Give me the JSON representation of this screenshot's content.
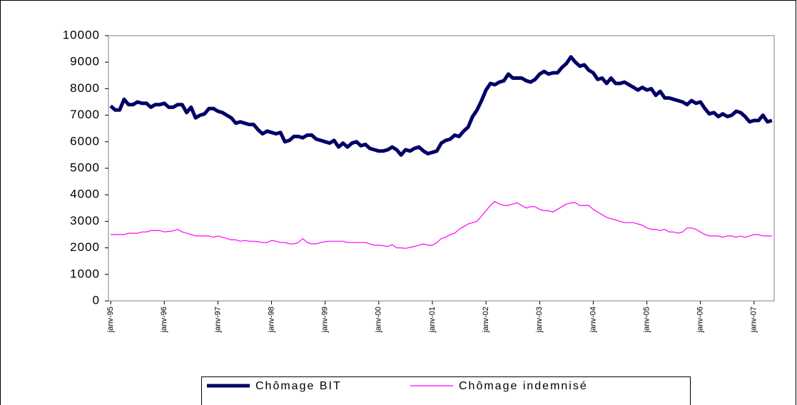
{
  "chart_data": {
    "type": "line",
    "categories": [
      "janv-95",
      null,
      null,
      null,
      null,
      null,
      null,
      null,
      null,
      null,
      null,
      null,
      "janv-96",
      null,
      null,
      null,
      null,
      null,
      null,
      null,
      null,
      null,
      null,
      null,
      "janv-97",
      null,
      null,
      null,
      null,
      null,
      null,
      null,
      null,
      null,
      null,
      null,
      "janv-98",
      null,
      null,
      null,
      null,
      null,
      null,
      null,
      null,
      null,
      null,
      null,
      "janv-99",
      null,
      null,
      null,
      null,
      null,
      null,
      null,
      null,
      null,
      null,
      null,
      "janv-00",
      null,
      null,
      null,
      null,
      null,
      null,
      null,
      null,
      null,
      null,
      null,
      "janv-01",
      null,
      null,
      null,
      null,
      null,
      null,
      null,
      null,
      null,
      null,
      null,
      "janv-02",
      null,
      null,
      null,
      null,
      null,
      null,
      null,
      null,
      null,
      null,
      null,
      "janv-03",
      null,
      null,
      null,
      null,
      null,
      null,
      null,
      null,
      null,
      null,
      null,
      "janv-04",
      null,
      null,
      null,
      null,
      null,
      null,
      null,
      null,
      null,
      null,
      null,
      "janv-05",
      null,
      null,
      null,
      null,
      null,
      null,
      null,
      null,
      null,
      null,
      null,
      "janv-06",
      null,
      null,
      null,
      null,
      null,
      null,
      null,
      null,
      null,
      null,
      null,
      "janv-07",
      null,
      null,
      null,
      null
    ],
    "series": [
      {
        "name": "Chômage BIT",
        "color": "#000066",
        "width": 5,
        "values": [
          7350,
          7200,
          7200,
          7600,
          7400,
          7400,
          7500,
          7450,
          7450,
          7300,
          7400,
          7400,
          7450,
          7300,
          7300,
          7400,
          7400,
          7100,
          7300,
          6900,
          7000,
          7050,
          7250,
          7250,
          7150,
          7100,
          7000,
          6900,
          6700,
          6750,
          6700,
          6650,
          6650,
          6450,
          6300,
          6400,
          6350,
          6300,
          6350,
          6000,
          6050,
          6200,
          6200,
          6150,
          6250,
          6250,
          6100,
          6050,
          6000,
          5950,
          6050,
          5800,
          5950,
          5800,
          5950,
          6000,
          5850,
          5900,
          5750,
          5700,
          5650,
          5650,
          5700,
          5800,
          5700,
          5500,
          5700,
          5650,
          5750,
          5800,
          5650,
          5550,
          5600,
          5650,
          5950,
          6050,
          6100,
          6250,
          6200,
          6400,
          6550,
          6950,
          7200,
          7550,
          7950,
          8200,
          8150,
          8250,
          8300,
          8550,
          8400,
          8400,
          8400,
          8300,
          8250,
          8350,
          8550,
          8650,
          8550,
          8600,
          8600,
          8800,
          8950,
          9200,
          9000,
          8850,
          8900,
          8700,
          8600,
          8350,
          8400,
          8200,
          8400,
          8200,
          8200,
          8250,
          8150,
          8050,
          7950,
          8050,
          7950,
          8000,
          7750,
          7900,
          7650,
          7650,
          7600,
          7550,
          7500,
          7400,
          7550,
          7450,
          7500,
          7250,
          7050,
          7100,
          6950,
          7050,
          6950,
          7000,
          7150,
          7100,
          6950,
          6750,
          6800,
          6800,
          7000,
          6750,
          6800
        ]
      },
      {
        "name": "Chômage indemnisé",
        "color": "#ff00ff",
        "width": 1.2,
        "values": [
          2500,
          2500,
          2500,
          2500,
          2550,
          2550,
          2550,
          2600,
          2600,
          2650,
          2650,
          2650,
          2600,
          2620,
          2640,
          2700,
          2600,
          2550,
          2500,
          2450,
          2450,
          2450,
          2450,
          2400,
          2450,
          2400,
          2350,
          2300,
          2300,
          2250,
          2280,
          2250,
          2250,
          2230,
          2200,
          2200,
          2280,
          2250,
          2200,
          2200,
          2150,
          2150,
          2200,
          2350,
          2200,
          2150,
          2150,
          2200,
          2230,
          2250,
          2250,
          2250,
          2250,
          2200,
          2200,
          2200,
          2200,
          2200,
          2150,
          2100,
          2100,
          2080,
          2050,
          2120,
          2000,
          2000,
          1980,
          2020,
          2050,
          2100,
          2150,
          2100,
          2100,
          2200,
          2350,
          2400,
          2500,
          2550,
          2700,
          2800,
          2900,
          2950,
          3000,
          3200,
          3400,
          3600,
          3750,
          3650,
          3600,
          3600,
          3650,
          3700,
          3600,
          3500,
          3550,
          3550,
          3450,
          3400,
          3400,
          3350,
          3450,
          3550,
          3650,
          3700,
          3700,
          3600,
          3600,
          3600,
          3450,
          3350,
          3250,
          3150,
          3100,
          3050,
          3000,
          2950,
          2950,
          2950,
          2900,
          2850,
          2750,
          2700,
          2700,
          2650,
          2700,
          2600,
          2600,
          2550,
          2600,
          2750,
          2750,
          2700,
          2600,
          2500,
          2450,
          2450,
          2450,
          2400,
          2450,
          2450,
          2400,
          2450,
          2400,
          2450,
          2500,
          2500,
          2450,
          2450,
          2450
        ]
      }
    ],
    "ylim": [
      0,
      10000
    ],
    "yticks": [
      0,
      1000,
      2000,
      3000,
      4000,
      5000,
      6000,
      7000,
      8000,
      9000,
      10000
    ],
    "grid": false,
    "legend": "bottom"
  }
}
